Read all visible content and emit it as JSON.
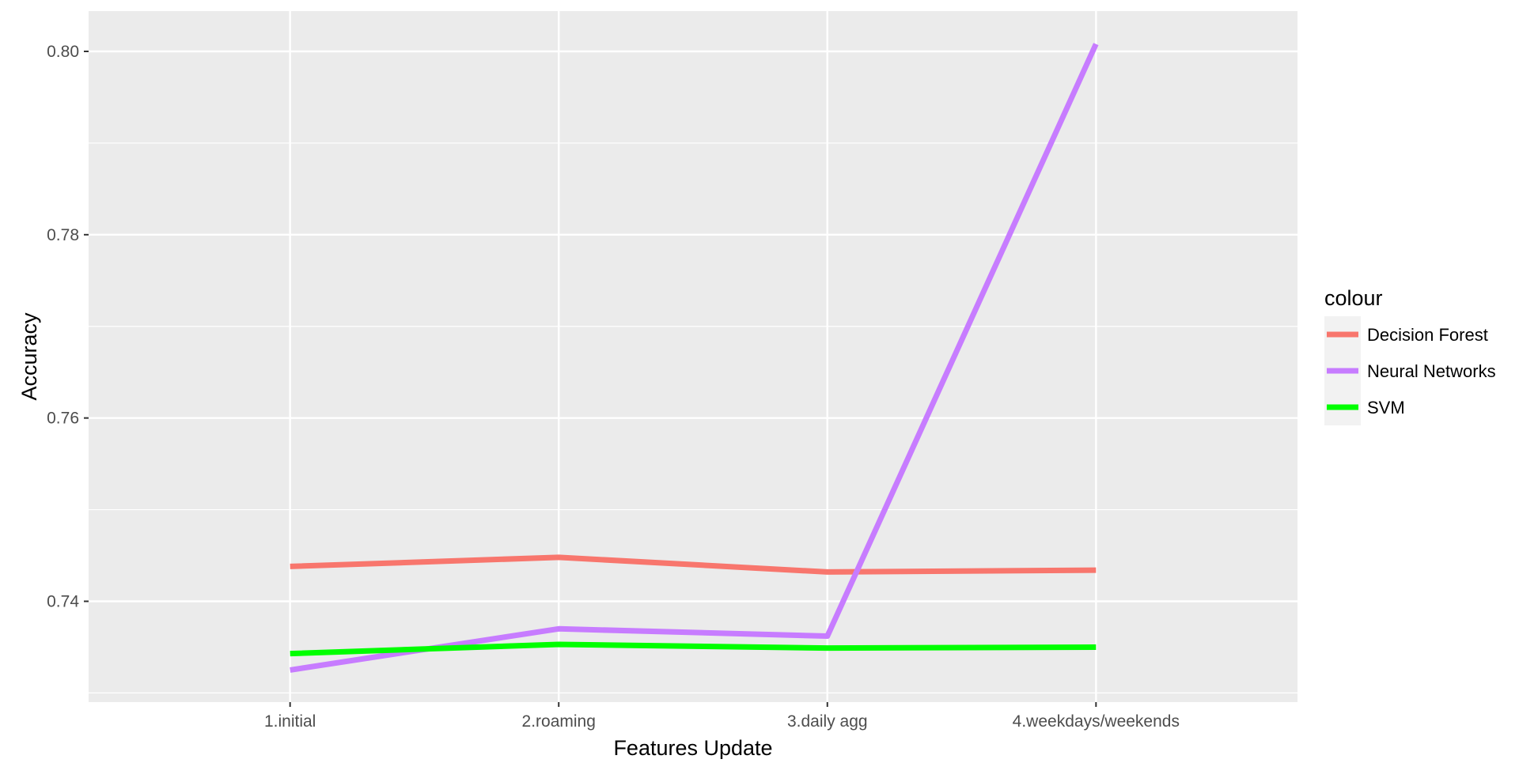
{
  "chart_data": {
    "type": "line",
    "title": "",
    "xlabel": "Features Update",
    "ylabel": "Accuracy",
    "categories": [
      "1.initial",
      "2.roaming",
      "3.daily agg",
      "4.weekdays/weekends"
    ],
    "ylim": [
      0.729,
      0.8044
    ],
    "yticks": [
      0.74,
      0.76,
      0.78,
      0.8
    ],
    "ytick_labels": [
      "0.74",
      "0.76",
      "0.78",
      "0.80"
    ],
    "grid": true,
    "legend_position": "right",
    "legend_title": "colour",
    "series": [
      {
        "name": "Decision Forest",
        "color": "#F8766D",
        "values": [
          0.7438,
          0.7448,
          0.7432,
          0.7434
        ]
      },
      {
        "name": "Neural Networks",
        "color": "#C77CFF",
        "values": [
          0.7325,
          0.737,
          0.7362,
          0.8008
        ]
      },
      {
        "name": "SVM",
        "color": "#00FF00",
        "values": [
          0.7343,
          0.7353,
          0.7349,
          0.735
        ]
      }
    ]
  }
}
